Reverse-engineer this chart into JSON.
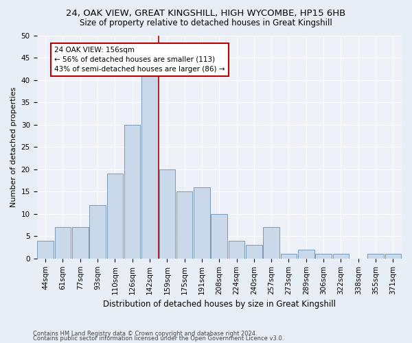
{
  "title1": "24, OAK VIEW, GREAT KINGSHILL, HIGH WYCOMBE, HP15 6HB",
  "title2": "Size of property relative to detached houses in Great Kingshill",
  "xlabel": "Distribution of detached houses by size in Great Kingshill",
  "ylabel": "Number of detached properties",
  "footer1": "Contains HM Land Registry data © Crown copyright and database right 2024.",
  "footer2": "Contains public sector information licensed under the Open Government Licence v3.0.",
  "categories": [
    "44sqm",
    "61sqm",
    "77sqm",
    "93sqm",
    "110sqm",
    "126sqm",
    "142sqm",
    "159sqm",
    "175sqm",
    "191sqm",
    "208sqm",
    "224sqm",
    "240sqm",
    "257sqm",
    "273sqm",
    "289sqm",
    "306sqm",
    "322sqm",
    "338sqm",
    "355sqm",
    "371sqm"
  ],
  "values": [
    4,
    7,
    7,
    12,
    19,
    30,
    42,
    20,
    15,
    16,
    10,
    4,
    3,
    7,
    1,
    2,
    1,
    1,
    0,
    1,
    1
  ],
  "bar_color": "#c9d9ea",
  "bar_edge_color": "#7799bb",
  "vline_x_index": 6,
  "vline_color": "#bb0000",
  "annotation_text": "24 OAK VIEW: 156sqm\n← 56% of detached houses are smaller (113)\n43% of semi-detached houses are larger (86) →",
  "annotation_box_color": "#ffffff",
  "annotation_box_edge": "#bb0000",
  "ylim": [
    0,
    50
  ],
  "yticks": [
    0,
    5,
    10,
    15,
    20,
    25,
    30,
    35,
    40,
    45,
    50
  ],
  "bg_color": "#e8eef5",
  "plot_bg_color": "#edf1f7",
  "grid_color": "#ffffff",
  "title1_fontsize": 9.5,
  "title2_fontsize": 8.5,
  "xlabel_fontsize": 8.5,
  "ylabel_fontsize": 8,
  "tick_fontsize": 7.5,
  "footer_fontsize": 6,
  "annot_fontsize": 7.5
}
